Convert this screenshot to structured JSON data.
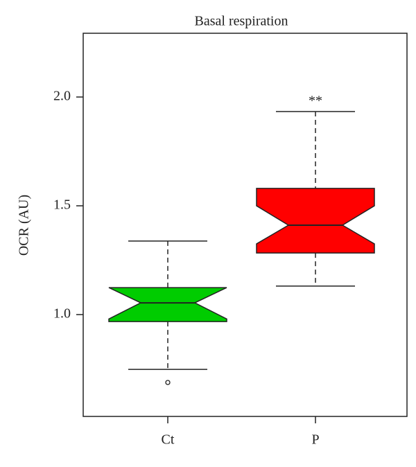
{
  "chart_data": {
    "type": "boxplot",
    "title": "Basal respiration",
    "y_label": "OCR (AU)",
    "categories": [
      "Ct",
      "P"
    ],
    "boxes": [
      {
        "whisker_low": 0.748,
        "q1": 0.968,
        "notch_low": 0.98,
        "median": 1.054,
        "notch_high": 1.124,
        "q3": 1.124,
        "whisker_high": 1.338,
        "outliers": [
          0.688
        ],
        "color": "#00cc00"
      },
      {
        "whisker_low": 1.131,
        "q1": 1.283,
        "notch_low": 1.325,
        "median": 1.411,
        "notch_high": 1.5,
        "q3": 1.58,
        "whisker_high": 1.933,
        "outliers": [],
        "color": "#ff0000"
      }
    ],
    "annotations": [
      {
        "category": 1,
        "text": "**"
      }
    ],
    "ylim": [
      0.532,
      2.293
    ],
    "yticks": [
      {
        "value": 1,
        "label": "1.0"
      },
      {
        "value": 1.5,
        "label": "1.5"
      },
      {
        "value": 2,
        "label": "2.0"
      }
    ]
  }
}
